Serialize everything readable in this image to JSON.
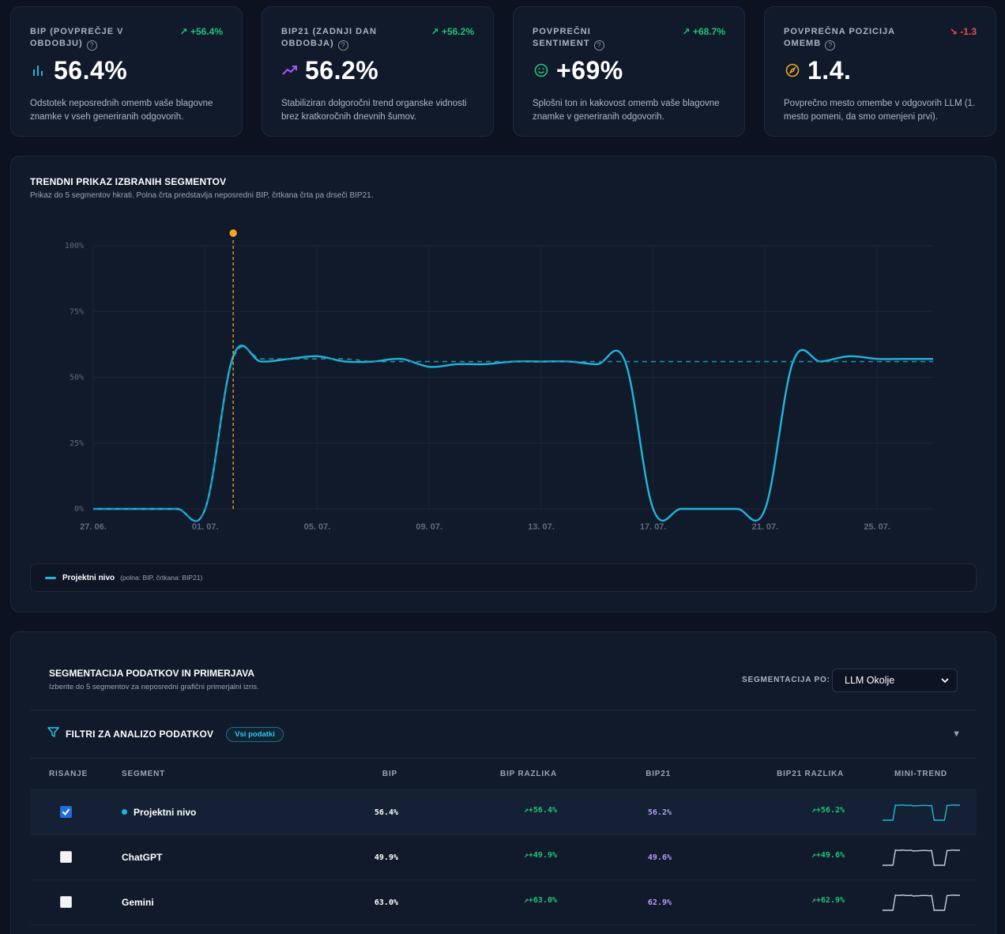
{
  "kpis": [
    {
      "title": "BIP (POVPREČJE V OBDOBJU)",
      "delta": "+56.4%",
      "delta_dir": "up",
      "value": "56.4%",
      "icon": "bar-chart-icon",
      "icon_color": "#22b5dc",
      "desc": "Odstotek neposrednih omemb vaše blagovne znamke v vseh generiranih odgovorih."
    },
    {
      "title": "BIP21 (ZADNJI DAN OBDOBJA)",
      "delta": "+56.2%",
      "delta_dir": "up",
      "value": "56.2%",
      "icon": "trend-up-icon",
      "icon_color": "#a855f7",
      "desc": "Stabiliziran dolgoročni trend organske vidnosti brez kratkoročnih dnevnih šumov."
    },
    {
      "title": "POVPREČNI SENTIMENT",
      "delta": "+68.7%",
      "delta_dir": "up",
      "value": "+69%",
      "icon": "smile-icon",
      "icon_color": "#22c27a",
      "desc": "Splošni ton in kakovost omemb vaše blagovne znamke v generiranih odgovorih."
    },
    {
      "title": "POVPREČNA POZICIJA OMEMB",
      "delta": "-1.3",
      "delta_dir": "down",
      "value": "1.4.",
      "icon": "compass-icon",
      "icon_color": "#f5a524",
      "desc": "Povprečno mesto omembe v odgovorih LLM (1. mesto pomeni, da smo omenjeni prvi)."
    }
  ],
  "trend": {
    "title": "TRENDNI PRIKAZ IZBRANIH SEGMENTOV",
    "subtitle": "Prikaz do 5 segmentov hkrati. Polna črta predstavlja neposredni BIP, črtkana črta pa drseči BIP21.",
    "legend_name": "Projektni nivo",
    "legend_note": "(polna: BIP, črtkana: BIP21)"
  },
  "chart_data": {
    "type": "line",
    "x": [
      "27. 06.",
      "28. 06.",
      "29. 06.",
      "30. 06.",
      "01. 07.",
      "02. 07.",
      "03. 07.",
      "04. 07.",
      "05. 07.",
      "06. 07.",
      "07. 07.",
      "08. 07.",
      "09. 07.",
      "10. 07.",
      "11. 07.",
      "12. 07.",
      "13. 07.",
      "14. 07.",
      "15. 07.",
      "16. 07.",
      "17. 07.",
      "18. 07.",
      "19. 07.",
      "20. 07.",
      "21. 07.",
      "22. 07.",
      "23. 07.",
      "24. 07.",
      "25. 07.",
      "26. 07.",
      "27. 07."
    ],
    "x_ticks": [
      "27. 06.",
      "01. 07.",
      "05. 07.",
      "09. 07.",
      "13. 07.",
      "17. 07.",
      "21. 07.",
      "25. 07."
    ],
    "y_ticks": [
      "0%",
      "25%",
      "50%",
      "75%",
      "100%"
    ],
    "ylim": [
      0,
      100
    ],
    "grid": true,
    "series": [
      {
        "name": "Projektni nivo",
        "style": "solid",
        "color": "#22b5dc",
        "values": [
          0,
          0,
          0,
          0,
          0,
          58,
          56,
          57,
          58,
          56,
          56,
          57,
          54,
          55,
          55,
          56,
          56,
          56,
          55,
          56,
          0,
          0,
          0,
          0,
          0,
          56,
          56,
          58,
          57,
          57,
          57
        ]
      },
      {
        "name": "Projektni nivo",
        "style": "dashed",
        "color": "#1f8fae",
        "values": [
          0,
          0,
          0,
          0,
          0,
          57,
          57,
          57,
          57,
          57,
          56,
          56,
          56,
          56,
          56,
          56,
          56,
          56,
          56,
          56,
          56,
          56,
          56,
          56,
          56,
          56,
          56,
          56,
          56,
          56,
          56
        ]
      }
    ],
    "marker": {
      "x": "02. 07.",
      "color": "#f5a524"
    }
  },
  "segmentation": {
    "title": "SEGMENTACIJA PODATKOV IN PRIMERJAVA",
    "subtitle": "Izberite do 5 segmentov za neposredni grafični primerjalni izris.",
    "by_label": "SEGMENTACIJA PO:",
    "by_value": "LLM Okolje",
    "filters_title": "FILTRI ZA ANALIZO PODATKOV",
    "filters_badge": "Vsi podatki",
    "headers": {
      "draw": "RISANJE",
      "segment": "SEGMENT",
      "bip": "BIP",
      "bip_diff": "BIP RAZLIKA",
      "bip21": "BIP21",
      "bip21_diff": "BIP21 RAZLIKA",
      "mini": "MINI-TREND"
    },
    "rows": [
      {
        "checked": true,
        "name": "Projektni nivo",
        "bip": "56.4%",
        "bip_diff": "+56.4%",
        "bip21": "56.2%",
        "bip21_diff": "+56.2%",
        "spark_color": "#22b5dc"
      },
      {
        "checked": false,
        "name": "ChatGPT",
        "bip": "49.9%",
        "bip_diff": "+49.9%",
        "bip21": "49.6%",
        "bip21_diff": "+49.6%",
        "spark_color": "#c9ced8"
      },
      {
        "checked": false,
        "name": "Gemini",
        "bip": "63.0%",
        "bip_diff": "+63.0%",
        "bip21": "62.9%",
        "bip21_diff": "+62.9%",
        "spark_color": "#c9ced8"
      }
    ]
  }
}
